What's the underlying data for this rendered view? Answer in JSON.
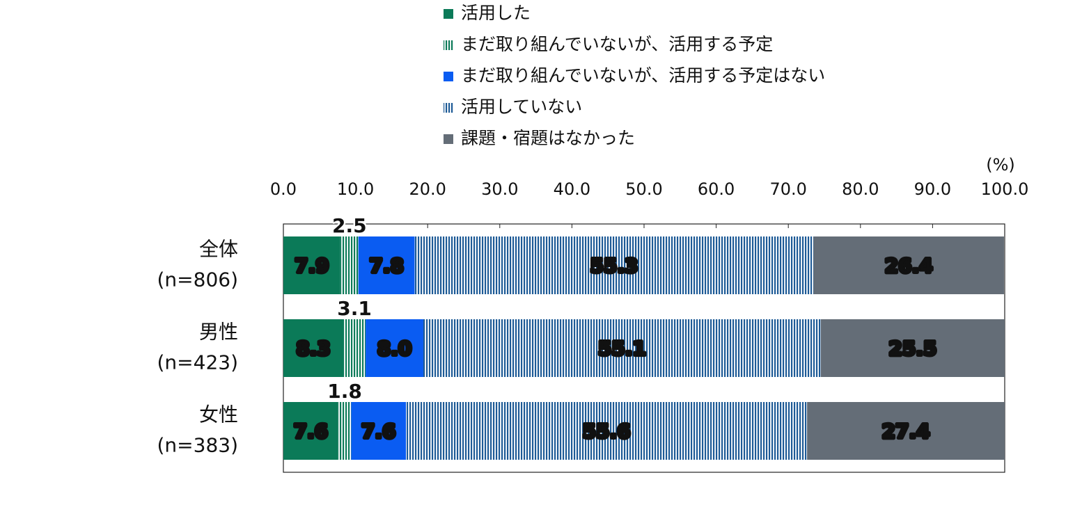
{
  "chart_data": {
    "type": "stacked_barh",
    "unit_label": "(%)",
    "categories": [
      "全体\n(n=806)",
      "男性\n(n=423)",
      "女性\n(n=383)"
    ],
    "series": [
      {
        "name": "活用した",
        "color": "#0b7a58",
        "pattern": "solid",
        "values": [
          7.9,
          8.3,
          7.6
        ],
        "value_labels": [
          "7.9",
          "8.3",
          "7.6"
        ]
      },
      {
        "name": "まだ取り組んでいないが、活用する予定",
        "color": "#0b7a58",
        "pattern": "stripes",
        "values": [
          2.5,
          3.1,
          1.8
        ],
        "value_labels": [
          "2.5",
          "3.1",
          "1.8"
        ]
      },
      {
        "name": "まだ取り組んでいないが、活用する予定はない",
        "color": "#0a5cf2",
        "pattern": "solid",
        "values": [
          7.8,
          8.0,
          7.6
        ],
        "value_labels": [
          "7.8",
          "8.0",
          "7.6"
        ]
      },
      {
        "name": "活用していない",
        "color": "#1d5a96",
        "pattern": "stripes",
        "values": [
          55.3,
          55.1,
          55.6
        ],
        "value_labels": [
          "55.3",
          "55.1",
          "55.6"
        ]
      },
      {
        "name": "課題・宿題はなかった",
        "color": "#646d77",
        "pattern": "solid",
        "values": [
          26.4,
          25.5,
          27.4
        ],
        "value_labels": [
          "26.4",
          "25.5",
          "27.4"
        ]
      }
    ],
    "xlim": [
      0,
      100
    ],
    "xticks": [
      {
        "value": 0,
        "label": "0.0"
      },
      {
        "value": 10,
        "label": "10.0"
      },
      {
        "value": 20,
        "label": "20.0"
      },
      {
        "value": 30,
        "label": "30.0"
      },
      {
        "value": 40,
        "label": "40.0"
      },
      {
        "value": 50,
        "label": "50.0"
      },
      {
        "value": 60,
        "label": "60.0"
      },
      {
        "value": 70,
        "label": "70.0"
      },
      {
        "value": 80,
        "label": "80.0"
      },
      {
        "value": 90,
        "label": "90.0"
      },
      {
        "value": 100,
        "label": "100.0"
      }
    ],
    "legend": "top"
  }
}
